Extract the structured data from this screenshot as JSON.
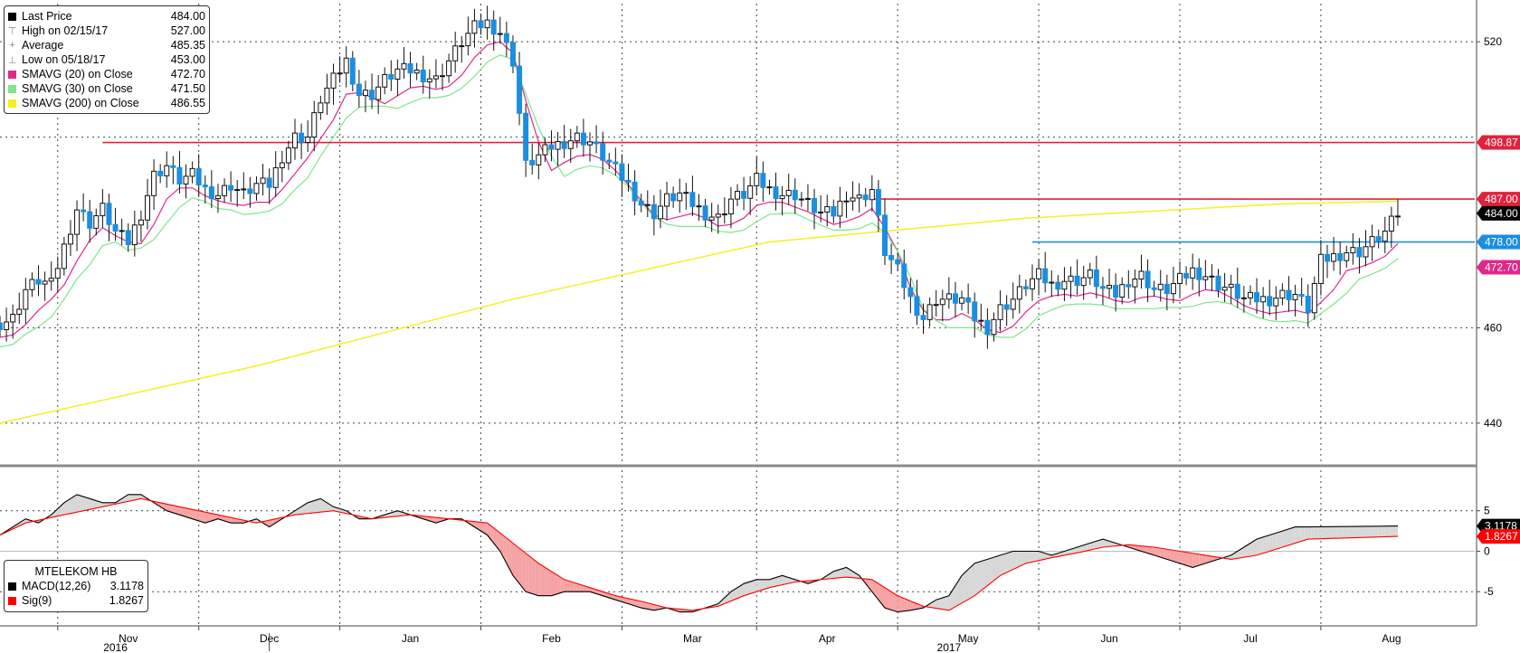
{
  "legend_top": {
    "rows": [
      {
        "label": "Last Price",
        "value": "484.00",
        "color": "#000000",
        "kind": "box"
      },
      {
        "label": "High on 02/15/17",
        "value": "527.00",
        "symbol": "⊤",
        "kind": "sym"
      },
      {
        "label": "Average",
        "value": "485.35",
        "symbol": "+",
        "kind": "sym"
      },
      {
        "label": "Low on 05/18/17",
        "value": "453.00",
        "symbol": "⊥",
        "kind": "sym"
      },
      {
        "label": "SMAVG (20) on Close",
        "value": "472.70",
        "color": "#e0288a",
        "kind": "box"
      },
      {
        "label": "SMAVG (30) on Close",
        "value": "471.50",
        "color": "#7ce88a",
        "kind": "box"
      },
      {
        "label": "SMAVG (200) on Close",
        "value": "486.55",
        "color": "#f5f020",
        "kind": "box"
      }
    ]
  },
  "legend_bottom": {
    "title": "MTELEKOM HB",
    "rows": [
      {
        "label": "MACD(12,26)",
        "value": "3.1178",
        "color": "#000000"
      },
      {
        "label": "Sig(9)",
        "value": "1.8267",
        "color": "#ff0000"
      }
    ]
  },
  "chart_data": [
    {
      "type": "candlestick",
      "ylim": [
        432,
        528
      ],
      "yticks": [
        440,
        460,
        520
      ],
      "grid": true,
      "months": [
        {
          "label": "Nov",
          "t": 9
        },
        {
          "label": "Dec",
          "t": 31
        },
        {
          "label": "Jan",
          "t": 53
        },
        {
          "label": "Feb",
          "t": 75
        },
        {
          "label": "Mar",
          "t": 97
        },
        {
          "label": "Apr",
          "t": 118
        },
        {
          "label": "May",
          "t": 140
        },
        {
          "label": "Jun",
          "t": 162
        },
        {
          "label": "Jul",
          "t": 184
        },
        {
          "label": "Aug",
          "t": 206
        }
      ],
      "years": [
        {
          "label": "2016",
          "t": 7
        },
        {
          "label": "2017",
          "t": 137
        }
      ],
      "year_divider_t": 42,
      "x_range": [
        0,
        230
      ],
      "close_series": [
        [
          0,
          461
        ],
        [
          2,
          462
        ],
        [
          4,
          468
        ],
        [
          6,
          470
        ],
        [
          8,
          469
        ],
        [
          10,
          477
        ],
        [
          12,
          485
        ],
        [
          14,
          482
        ],
        [
          16,
          485
        ],
        [
          18,
          480
        ],
        [
          20,
          478
        ],
        [
          22,
          484
        ],
        [
          24,
          492
        ],
        [
          26,
          494
        ],
        [
          28,
          491
        ],
        [
          30,
          492
        ],
        [
          32,
          489
        ],
        [
          34,
          488
        ],
        [
          36,
          490
        ],
        [
          38,
          488
        ],
        [
          40,
          490
        ],
        [
          42,
          490
        ],
        [
          44,
          496
        ],
        [
          46,
          500
        ],
        [
          48,
          500
        ],
        [
          50,
          508
        ],
        [
          52,
          512
        ],
        [
          54,
          516
        ],
        [
          56,
          509
        ],
        [
          58,
          509
        ],
        [
          60,
          512
        ],
        [
          62,
          514
        ],
        [
          64,
          514
        ],
        [
          66,
          513
        ],
        [
          68,
          512
        ],
        [
          70,
          516
        ],
        [
          72,
          520
        ],
        [
          74,
          523
        ],
        [
          76,
          524
        ],
        [
          78,
          522
        ],
        [
          80,
          516
        ],
        [
          82,
          494
        ],
        [
          84,
          496
        ],
        [
          86,
          498
        ],
        [
          88,
          499
        ],
        [
          90,
          500
        ],
        [
          92,
          499
        ],
        [
          94,
          496
        ],
        [
          96,
          493
        ],
        [
          98,
          490
        ],
        [
          100,
          486
        ],
        [
          102,
          484
        ],
        [
          104,
          487
        ],
        [
          106,
          488
        ],
        [
          108,
          486
        ],
        [
          110,
          484
        ],
        [
          112,
          483
        ],
        [
          114,
          487
        ],
        [
          116,
          488
        ],
        [
          118,
          491
        ],
        [
          120,
          489
        ],
        [
          122,
          488
        ],
        [
          124,
          488
        ],
        [
          126,
          486
        ],
        [
          128,
          484
        ],
        [
          130,
          484
        ],
        [
          132,
          488
        ],
        [
          134,
          487
        ],
        [
          136,
          489
        ],
        [
          138,
          476
        ],
        [
          140,
          472
        ],
        [
          142,
          466
        ],
        [
          144,
          462
        ],
        [
          146,
          466
        ],
        [
          148,
          466
        ],
        [
          150,
          466
        ],
        [
          152,
          462
        ],
        [
          154,
          460
        ],
        [
          156,
          464
        ],
        [
          158,
          466
        ],
        [
          160,
          469
        ],
        [
          162,
          471
        ],
        [
          164,
          469
        ],
        [
          166,
          470
        ],
        [
          168,
          470
        ],
        [
          170,
          471
        ],
        [
          172,
          468
        ],
        [
          174,
          467
        ],
        [
          176,
          470
        ],
        [
          178,
          471
        ],
        [
          180,
          468
        ],
        [
          182,
          468
        ],
        [
          184,
          470
        ],
        [
          186,
          472
        ],
        [
          188,
          471
        ],
        [
          190,
          469
        ],
        [
          192,
          468
        ],
        [
          194,
          466
        ],
        [
          196,
          466
        ],
        [
          198,
          466
        ],
        [
          200,
          467
        ],
        [
          202,
          467
        ],
        [
          204,
          464
        ],
        [
          206,
          474
        ],
        [
          208,
          475
        ],
        [
          210,
          476
        ],
        [
          212,
          476
        ],
        [
          214,
          478
        ],
        [
          216,
          480
        ],
        [
          218,
          484
        ]
      ],
      "sma200": [
        [
          0,
          440
        ],
        [
          40,
          452
        ],
        [
          80,
          466
        ],
        [
          120,
          478
        ],
        [
          160,
          483
        ],
        [
          200,
          486
        ],
        [
          218,
          486.55
        ]
      ],
      "hlines": [
        {
          "value": 498.87,
          "label": "498.87",
          "color": "#e0223d",
          "from": 16
        },
        {
          "value": 487.0,
          "label": "487.00",
          "color": "#e0223d",
          "from": 136
        },
        {
          "value": 478.0,
          "label": "478.00",
          "color": "#1b8ee0",
          "from": 161
        }
      ],
      "price_tags": [
        {
          "value": 484.0,
          "label": "484.00",
          "color": "#000000"
        },
        {
          "value": 472.7,
          "label": "472.70",
          "color": "#e0288a"
        }
      ]
    },
    {
      "type": "line",
      "ylim": [
        -9,
        10
      ],
      "yticks": [
        -5,
        0,
        5
      ],
      "macd": [
        [
          0,
          2
        ],
        [
          2,
          3
        ],
        [
          4,
          4
        ],
        [
          6,
          3.5
        ],
        [
          8,
          4.5
        ],
        [
          10,
          6
        ],
        [
          12,
          7
        ],
        [
          14,
          6.5
        ],
        [
          16,
          6
        ],
        [
          18,
          6
        ],
        [
          20,
          7
        ],
        [
          22,
          7
        ],
        [
          24,
          6
        ],
        [
          26,
          5
        ],
        [
          28,
          4.5
        ],
        [
          30,
          4
        ],
        [
          32,
          3.5
        ],
        [
          34,
          4
        ],
        [
          36,
          3.5
        ],
        [
          38,
          3.5
        ],
        [
          40,
          4
        ],
        [
          42,
          3
        ],
        [
          44,
          4
        ],
        [
          46,
          5
        ],
        [
          48,
          6
        ],
        [
          50,
          6.5
        ],
        [
          52,
          5.5
        ],
        [
          54,
          5
        ],
        [
          56,
          4
        ],
        [
          58,
          4
        ],
        [
          60,
          4.5
        ],
        [
          62,
          5
        ],
        [
          64,
          4.5
        ],
        [
          66,
          4
        ],
        [
          68,
          3.5
        ],
        [
          70,
          4
        ],
        [
          72,
          4
        ],
        [
          74,
          3
        ],
        [
          76,
          2
        ],
        [
          78,
          0
        ],
        [
          80,
          -3
        ],
        [
          82,
          -5
        ],
        [
          84,
          -5.5
        ],
        [
          86,
          -5.5
        ],
        [
          88,
          -5
        ],
        [
          90,
          -5
        ],
        [
          92,
          -5
        ],
        [
          94,
          -5.5
        ],
        [
          96,
          -6
        ],
        [
          98,
          -6.5
        ],
        [
          100,
          -7
        ],
        [
          102,
          -7.3
        ],
        [
          104,
          -7
        ],
        [
          106,
          -7.5
        ],
        [
          108,
          -7.5
        ],
        [
          110,
          -7
        ],
        [
          112,
          -6.5
        ],
        [
          114,
          -5
        ],
        [
          116,
          -4
        ],
        [
          118,
          -3.5
        ],
        [
          120,
          -3.5
        ],
        [
          122,
          -3
        ],
        [
          124,
          -3.5
        ],
        [
          126,
          -4
        ],
        [
          128,
          -3.5
        ],
        [
          130,
          -2.5
        ],
        [
          132,
          -2
        ],
        [
          134,
          -3
        ],
        [
          136,
          -5
        ],
        [
          138,
          -7
        ],
        [
          140,
          -7.5
        ],
        [
          142,
          -7.3
        ],
        [
          144,
          -7
        ],
        [
          146,
          -6
        ],
        [
          148,
          -5.5
        ],
        [
          150,
          -3
        ],
        [
          152,
          -1.5
        ],
        [
          154,
          -1
        ],
        [
          156,
          -0.5
        ],
        [
          158,
          0
        ],
        [
          160,
          0
        ],
        [
          162,
          0
        ],
        [
          164,
          -0.5
        ],
        [
          166,
          0
        ],
        [
          168,
          0.5
        ],
        [
          170,
          1
        ],
        [
          172,
          1.5
        ],
        [
          174,
          1
        ],
        [
          176,
          0.5
        ],
        [
          178,
          0
        ],
        [
          180,
          -0.5
        ],
        [
          182,
          -1
        ],
        [
          184,
          -1.5
        ],
        [
          186,
          -2
        ],
        [
          188,
          -1.5
        ],
        [
          190,
          -1
        ],
        [
          192,
          -0.5
        ],
        [
          194,
          0.5
        ],
        [
          196,
          1.5
        ],
        [
          198,
          2
        ],
        [
          200,
          2.5
        ],
        [
          202,
          3
        ],
        [
          204,
          3
        ],
        [
          218,
          3.1178
        ]
      ],
      "signal": [
        [
          0,
          2
        ],
        [
          4,
          3.5
        ],
        [
          10,
          4.5
        ],
        [
          16,
          5.5
        ],
        [
          22,
          6.5
        ],
        [
          28,
          5.5
        ],
        [
          34,
          4.5
        ],
        [
          40,
          3.5
        ],
        [
          46,
          4.5
        ],
        [
          52,
          5
        ],
        [
          58,
          4
        ],
        [
          64,
          4.5
        ],
        [
          70,
          4
        ],
        [
          76,
          3.5
        ],
        [
          80,
          1
        ],
        [
          84,
          -1.5
        ],
        [
          88,
          -3.5
        ],
        [
          92,
          -4.5
        ],
        [
          96,
          -5.5
        ],
        [
          100,
          -6.2
        ],
        [
          104,
          -7
        ],
        [
          108,
          -7.3
        ],
        [
          112,
          -6.8
        ],
        [
          116,
          -5.5
        ],
        [
          120,
          -4.5
        ],
        [
          124,
          -3.8
        ],
        [
          128,
          -3.5
        ],
        [
          132,
          -3.2
        ],
        [
          136,
          -3.5
        ],
        [
          140,
          -5.5
        ],
        [
          144,
          -6.8
        ],
        [
          148,
          -7.3
        ],
        [
          152,
          -5.5
        ],
        [
          156,
          -3
        ],
        [
          160,
          -1.5
        ],
        [
          164,
          -0.8
        ],
        [
          168,
          -0.2
        ],
        [
          172,
          0.5
        ],
        [
          176,
          0.8
        ],
        [
          180,
          0.5
        ],
        [
          184,
          0
        ],
        [
          188,
          -0.5
        ],
        [
          192,
          -1
        ],
        [
          196,
          -0.5
        ],
        [
          200,
          0.5
        ],
        [
          204,
          1.5
        ],
        [
          218,
          1.8267
        ]
      ],
      "tags": [
        {
          "value": 3.1178,
          "label": "3.1178",
          "color": "#000000"
        },
        {
          "value": 1.8267,
          "label": "1.8267",
          "color": "#ff0000"
        }
      ]
    }
  ]
}
